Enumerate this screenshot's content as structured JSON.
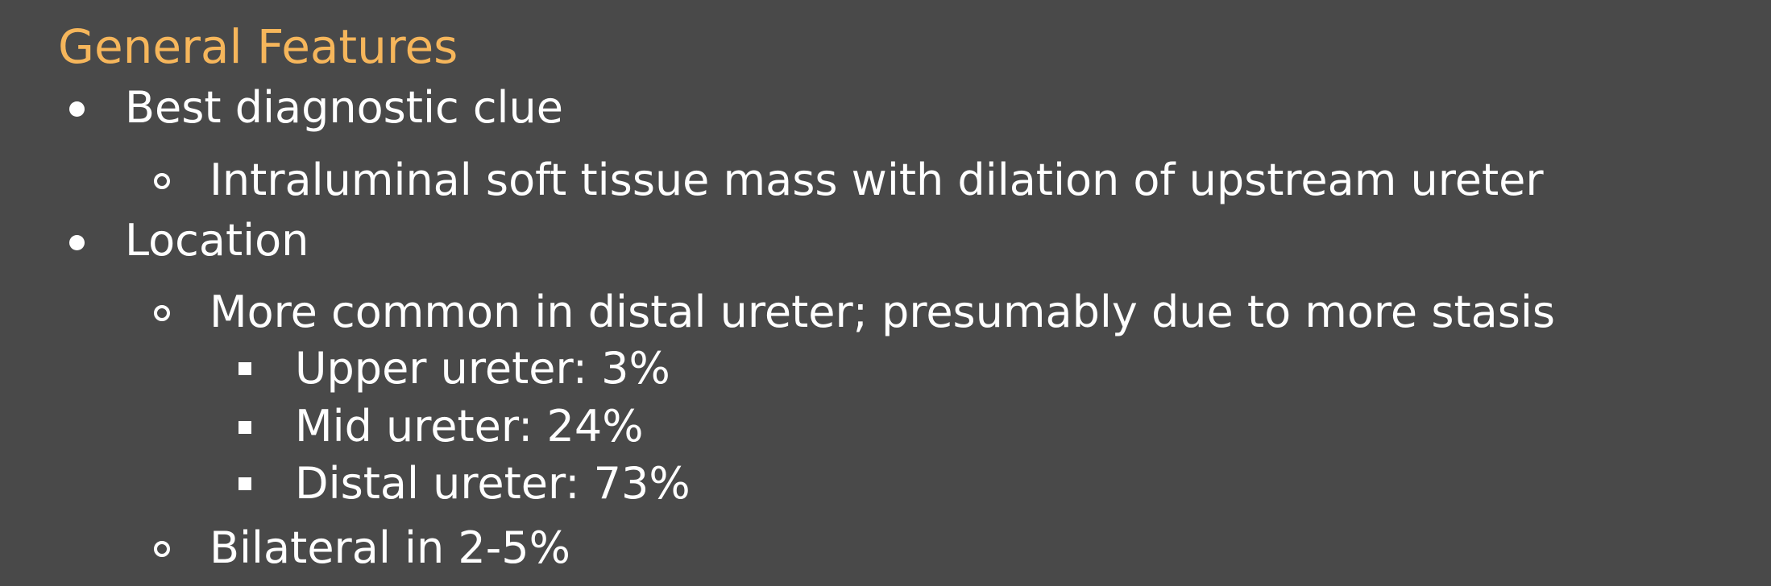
{
  "title": "General Features",
  "items": {
    "l1_best_clue": "Best diagnostic clue",
    "l2_intraluminal": "Intraluminal soft tissue mass with dilation of upstream ureter",
    "l1_location": "Location",
    "l2_more_common": "More common in distal ureter; presumably due to more stasis",
    "l3_upper": "Upper ureter: 3%",
    "l3_mid": "Mid ureter: 24%",
    "l3_distal": "Distal ureter: 73%",
    "l2_bilateral": "Bilateral in 2-5%"
  },
  "colors": {
    "background": "#494949",
    "title": "#f6b65b",
    "text": "#ffffff"
  }
}
